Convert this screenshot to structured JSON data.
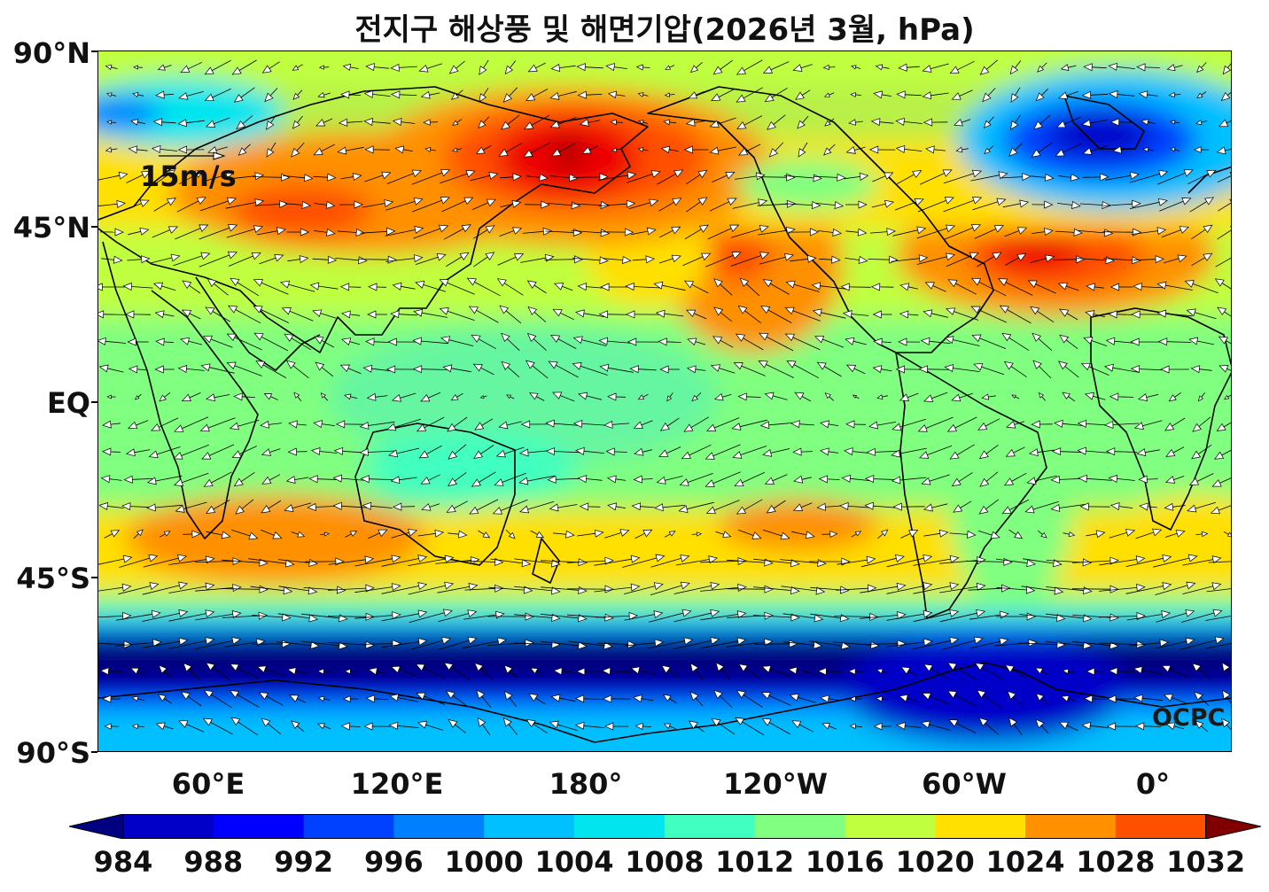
{
  "title": "전지구 해상풍 및 해면기압(2026년 3월, hPa)",
  "lat_labels": [
    "90°N",
    "45°N",
    "EQ",
    "45°S",
    "90°S"
  ],
  "lon_labels": [
    "60°E",
    "120°E",
    "180°",
    "120°W",
    "60°W",
    "0°"
  ],
  "reference_vector": "15m/s",
  "credit": "OCPC",
  "colorbar": {
    "levels": [
      "984",
      "988",
      "992",
      "996",
      "1000",
      "1004",
      "1008",
      "1012",
      "1016",
      "1020",
      "1024",
      "1028",
      "1032"
    ],
    "colors": [
      "#000080",
      "#0000c8",
      "#0000ff",
      "#0040ff",
      "#0080ff",
      "#00c0ff",
      "#00e5ee",
      "#40ffc0",
      "#80ff80",
      "#c0ff40",
      "#ffe000",
      "#ff9000",
      "#ff5000",
      "#ee0000",
      "#800000"
    ]
  },
  "colors": {
    "land_outline": "#000000",
    "arrow_fill": "#ffffff",
    "arrow_stroke": "#000000"
  }
}
